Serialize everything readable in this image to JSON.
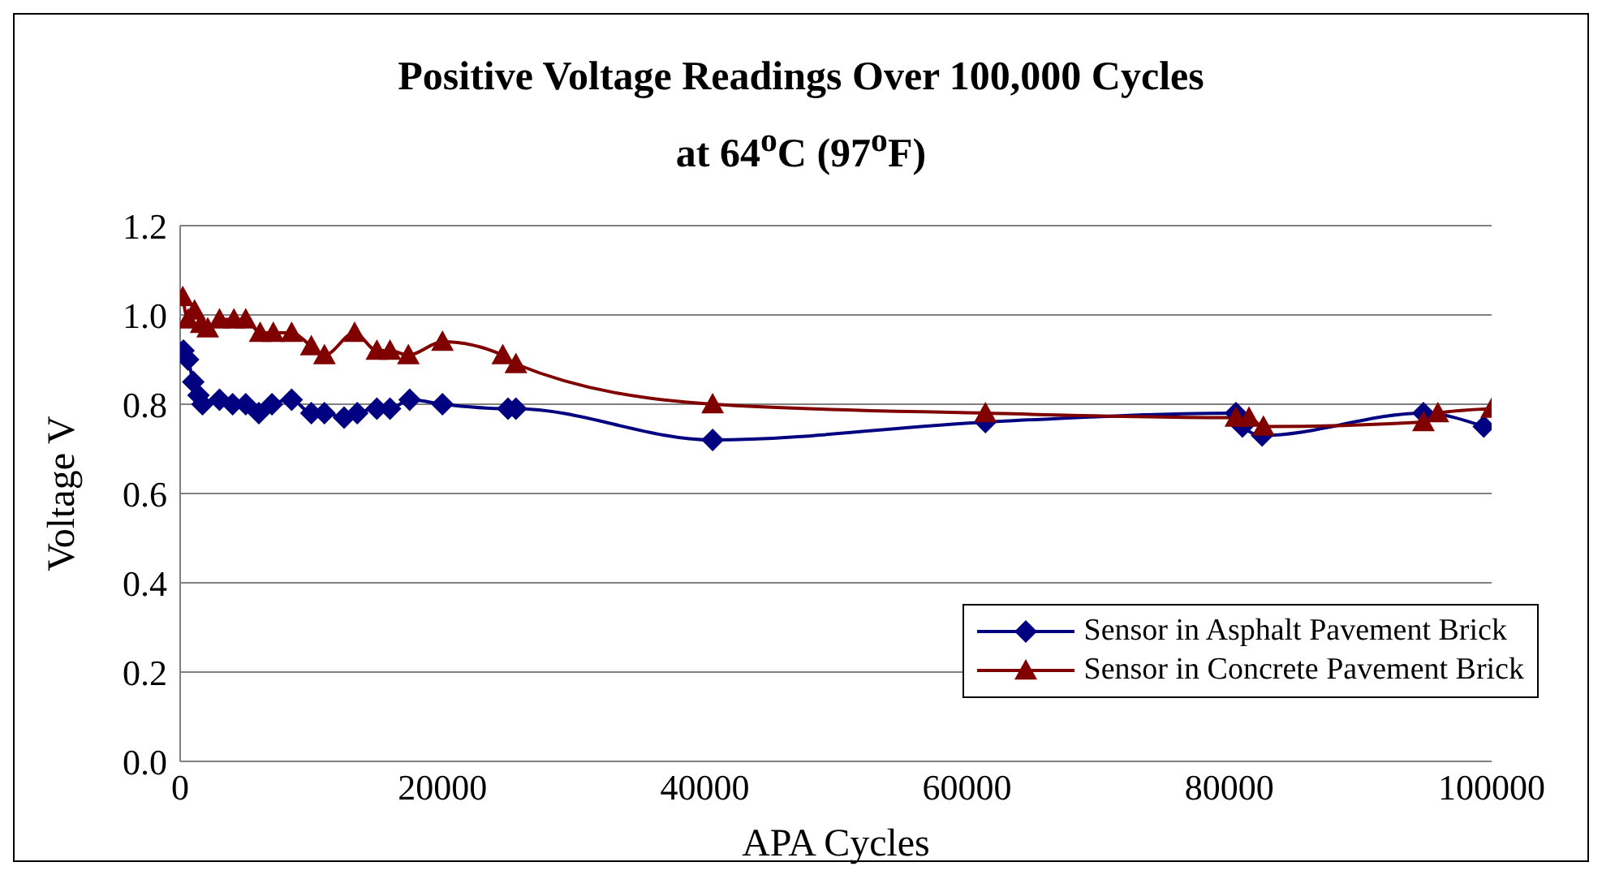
{
  "chart_data": {
    "type": "line",
    "title": "Positive Voltage Readings Over 100,000 Cycles",
    "subtitle": "at 64$^{o}$C (97$^{o}$F)",
    "xlabel": "APA Cycles",
    "ylabel": "Voltage V",
    "xlim": [
      0,
      100000
    ],
    "xticks": [
      0,
      20000,
      40000,
      60000,
      80000,
      100000
    ],
    "ylim": [
      0,
      1.2
    ],
    "yticks": [
      {
        "value": 0,
        "label": "0.0"
      },
      {
        "value": 0.2,
        "label": "0.2"
      },
      {
        "value": 0.4,
        "label": "0.4"
      },
      {
        "value": 0.6,
        "label": "0.6"
      },
      {
        "value": 0.8,
        "label": "0.8"
      },
      {
        "value": 1,
        "label": "1.0"
      },
      {
        "value": 1.2,
        "label": "1.2"
      }
    ],
    "grid": "y",
    "legend": "bottom right",
    "series": [
      {
        "name": "Sensor in Asphalt Pavement Brick",
        "color": "#000080",
        "marker": "diamond",
        "x": [
          250,
          600,
          1000,
          1400,
          1700,
          3000,
          4000,
          5000,
          6000,
          7000,
          8500,
          10000,
          11000,
          12500,
          13500,
          15000,
          16000,
          17500,
          20000,
          25000,
          25600,
          40600,
          61400,
          80500,
          81000,
          82500,
          94800,
          99400
        ],
        "values": [
          0.92,
          0.9,
          0.85,
          0.82,
          0.8,
          0.81,
          0.8,
          0.8,
          0.78,
          0.8,
          0.81,
          0.78,
          0.78,
          0.77,
          0.78,
          0.79,
          0.79,
          0.81,
          0.8,
          0.79,
          0.79,
          0.72,
          0.76,
          0.78,
          0.75,
          0.73,
          0.78,
          0.75
        ]
      },
      {
        "name": "Sensor in Concrete Pavement Brick",
        "color": "#800000",
        "marker": "triangle",
        "x": [
          200,
          600,
          1100,
          1600,
          2100,
          3000,
          4100,
          5000,
          6100,
          7100,
          8500,
          10000,
          11000,
          13300,
          15000,
          16000,
          17400,
          20000,
          24600,
          25600,
          40600,
          61400,
          80500,
          81500,
          82600,
          94800,
          95900,
          100000
        ],
        "values": [
          1.04,
          0.99,
          1.01,
          0.98,
          0.97,
          0.99,
          0.99,
          0.99,
          0.96,
          0.96,
          0.96,
          0.93,
          0.91,
          0.96,
          0.92,
          0.92,
          0.91,
          0.94,
          0.91,
          0.89,
          0.8,
          0.78,
          0.77,
          0.77,
          0.75,
          0.76,
          0.78,
          0.79
        ]
      }
    ]
  }
}
